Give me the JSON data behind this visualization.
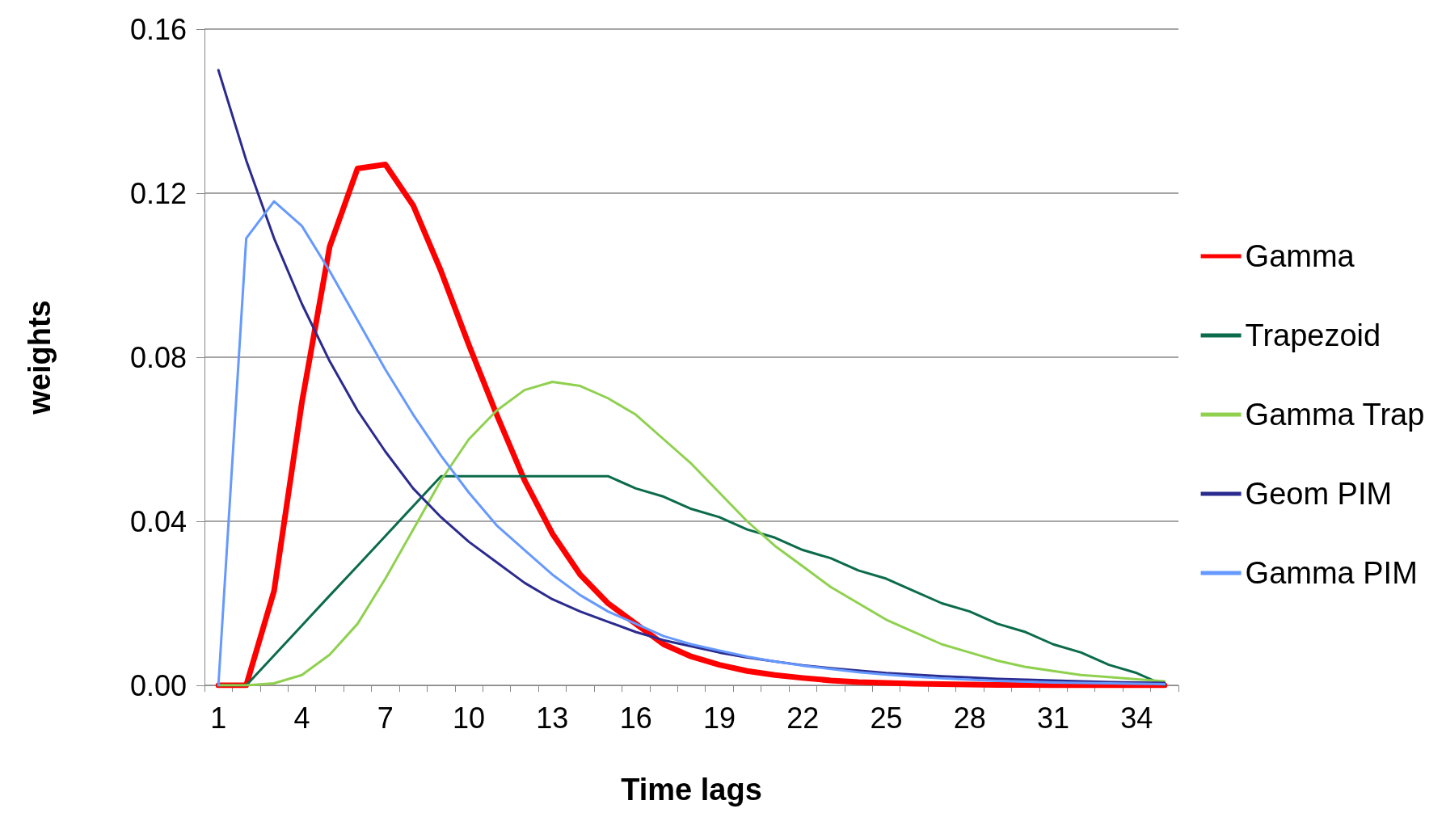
{
  "chart_data": {
    "type": "line",
    "xlabel": "Time lags",
    "ylabel": "weights",
    "categories": [
      "1",
      null,
      null,
      "4",
      null,
      null,
      "7",
      null,
      null,
      "10",
      null,
      null,
      "13",
      null,
      null,
      "16",
      null,
      null,
      "19",
      null,
      null,
      "22",
      null,
      null,
      "25",
      null,
      null,
      "28",
      null,
      null,
      "31",
      null,
      null,
      "34",
      null
    ],
    "ylim": [
      0,
      0.16
    ],
    "yticks": [
      {
        "value": 0,
        "label": "0.00"
      },
      {
        "value": 0.04,
        "label": "0.04"
      },
      {
        "value": 0.08,
        "label": "0.08"
      },
      {
        "value": 0.12,
        "label": "0.12"
      },
      {
        "value": 0.16,
        "label": "0.16"
      }
    ],
    "grid": "y",
    "legend": "right",
    "marker": "none",
    "line_style": "solid",
    "series": [
      {
        "name": "Gamma",
        "color": "#ff0000",
        "values": [
          0,
          0,
          0.023,
          0.069,
          0.107,
          0.126,
          0.127,
          0.117,
          0.101,
          0.083,
          0.066,
          0.05,
          0.037,
          0.027,
          0.02,
          0.015,
          0.01,
          0.007,
          0.005,
          0.0035,
          0.0025,
          0.0018,
          0.0012,
          0.0008,
          0.0006,
          0.0004,
          0.0003,
          0.0002,
          0.0001,
          0.0001,
          0,
          0,
          0,
          0,
          0
        ]
      },
      {
        "name": "Trapezoid",
        "color": "#0b6b4a",
        "values": [
          0,
          0,
          0.0073,
          0.0146,
          0.0219,
          0.0291,
          0.0364,
          0.0437,
          0.051,
          0.051,
          0.051,
          0.051,
          0.051,
          0.051,
          0.051,
          0.048,
          0.046,
          0.043,
          0.041,
          0.038,
          0.036,
          0.033,
          0.031,
          0.028,
          0.026,
          0.023,
          0.02,
          0.018,
          0.015,
          0.013,
          0.01,
          0.008,
          0.005,
          0.003,
          0
        ]
      },
      {
        "name": "Gamma Trap",
        "color": "#8fd14f",
        "values": [
          0,
          0,
          0.0005,
          0.0025,
          0.0075,
          0.015,
          0.026,
          0.038,
          0.05,
          0.06,
          0.067,
          0.072,
          0.074,
          0.073,
          0.07,
          0.066,
          0.06,
          0.054,
          0.047,
          0.04,
          0.034,
          0.029,
          0.024,
          0.02,
          0.016,
          0.013,
          0.01,
          0.008,
          0.006,
          0.0045,
          0.0035,
          0.0025,
          0.002,
          0.0015,
          0.001
        ]
      },
      {
        "name": "Geom PIM",
        "color": "#2b2b8f",
        "values": [
          0.15,
          0.128,
          0.109,
          0.093,
          0.079,
          0.067,
          0.057,
          0.048,
          0.041,
          0.035,
          0.03,
          0.025,
          0.021,
          0.018,
          0.0155,
          0.013,
          0.011,
          0.0095,
          0.008,
          0.0068,
          0.0058,
          0.0049,
          0.0042,
          0.0036,
          0.003,
          0.0026,
          0.0022,
          0.0019,
          0.0016,
          0.0014,
          0.0012,
          0.001,
          0.0008,
          0.0007,
          0.0006
        ]
      },
      {
        "name": "Gamma PIM",
        "color": "#6699ff",
        "values": [
          0,
          0.109,
          0.118,
          0.112,
          0.101,
          0.089,
          0.077,
          0.066,
          0.056,
          0.047,
          0.039,
          0.033,
          0.027,
          0.022,
          0.018,
          0.015,
          0.012,
          0.01,
          0.0085,
          0.007,
          0.0058,
          0.0048,
          0.004,
          0.0032,
          0.0026,
          0.0021,
          0.0017,
          0.0014,
          0.0011,
          0.0009,
          0.0007,
          0.0006,
          0.0005,
          0.0004,
          0.0003
        ]
      }
    ]
  }
}
